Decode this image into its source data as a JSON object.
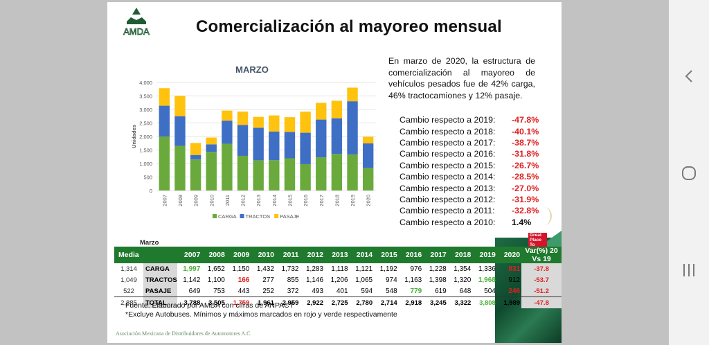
{
  "slide": {
    "title": "Comercialización al mayoreo mensual",
    "logo_text": "AMDA",
    "paragraph": "En marzo de 2020, la estructura de comercialización al mayoreo de vehículos pesados fue de 42% carga, 46% tractocamiones y 12% pasaje.",
    "changes": [
      {
        "label": "Cambio respecto a 2019:",
        "value": "-47.8%",
        "negative": true
      },
      {
        "label": "Cambio respecto a 2018:",
        "value": "-40.1%",
        "negative": true
      },
      {
        "label": "Cambio respecto a 2017:",
        "value": "-38.7%",
        "negative": true
      },
      {
        "label": "Cambio respecto a 2016:",
        "value": "-31.8%",
        "negative": true
      },
      {
        "label": "Cambio respecto a 2015:",
        "value": "-26.7%",
        "negative": true
      },
      {
        "label": "Cambio respecto a 2014:",
        "value": "-28.5%",
        "negative": true
      },
      {
        "label": "Cambio respecto a 2013:",
        "value": "-27.0%",
        "negative": true
      },
      {
        "label": "Cambio respecto a 2012:",
        "value": "-31.9%",
        "negative": true
      },
      {
        "label": "Cambio respecto a 2011:",
        "value": "-32.8%",
        "negative": true
      },
      {
        "label": "Cambio respecto a 2010:",
        "value": "1.4%",
        "negative": false
      }
    ],
    "badge": "Great Place To",
    "table": {
      "caption": "Marzo",
      "media_header": "Media",
      "years": [
        "2007",
        "2008",
        "2009",
        "2010",
        "2011",
        "2012",
        "2013",
        "2014",
        "2015",
        "2016",
        "2017",
        "2018",
        "2019",
        "2020"
      ],
      "var_header": "Var(%) 20 Vs 19",
      "rows": [
        {
          "media": "1,314",
          "label": "CARGA",
          "values": [
            "1,997",
            "1,652",
            "1,150",
            "1,432",
            "1,732",
            "1,283",
            "1,118",
            "1,121",
            "1,192",
            "976",
            "1,228",
            "1,354",
            "1,336",
            "831"
          ],
          "var": "-37.8",
          "min_idx": 13,
          "max_idx": 0
        },
        {
          "media": "1,049",
          "label": "TRACTOS",
          "values": [
            "1,142",
            "1,100",
            "166",
            "277",
            "855",
            "1,146",
            "1,206",
            "1,065",
            "974",
            "1,163",
            "1,398",
            "1,320",
            "1,968",
            "912"
          ],
          "var": "-53.7",
          "min_idx": 2,
          "max_idx": 12
        },
        {
          "media": "522",
          "label": "PASAJE",
          "values": [
            "649",
            "753",
            "443",
            "252",
            "372",
            "493",
            "401",
            "594",
            "548",
            "779",
            "619",
            "648",
            "504",
            "246"
          ],
          "var": "-51.2",
          "min_idx": 13,
          "max_idx": 9
        },
        {
          "media": "2,885",
          "label": "TOTAL",
          "values": [
            "3,788",
            "3,505",
            "1,759",
            "1,961",
            "2,959",
            "2,922",
            "2,725",
            "2,780",
            "2,714",
            "2,918",
            "3,245",
            "3,322",
            "3,808",
            "1,989"
          ],
          "var": "-47.8",
          "min_idx": 2,
          "max_idx": 12
        }
      ]
    },
    "footnote_source": "Fuente: Elaborado por AMDA con cifras de ANPACT",
    "footnote_note": "*Excluye Autobuses. Mínimos y máximos marcados en rojo y verde respectivamente",
    "footer": "Asociación Mexicana de Distribuidores de Automotores A.C."
  },
  "navbar": {
    "back": "back-icon",
    "home": "home-icon",
    "recents": "recents-icon"
  },
  "colors": {
    "carga": "#6aaa3c",
    "tractos": "#3f6fc4",
    "pasaje": "#ffc20e",
    "header_green": "#1f7a2e",
    "min_red": "#e02020",
    "max_green": "#4caf3a"
  },
  "chart_data": {
    "type": "bar",
    "stacked": true,
    "title": "MARZO",
    "xlabel": "",
    "ylabel": "Unidades",
    "ylim": [
      0,
      4000
    ],
    "yticks": [
      0,
      500,
      1000,
      1500,
      2000,
      2500,
      3000,
      3500,
      4000
    ],
    "ytick_labels": [
      "0",
      "500",
      "1,000",
      "1,500",
      "2,000",
      "2,500",
      "3,000",
      "3,500",
      "4,000"
    ],
    "grid": true,
    "legend": "bottom",
    "categories": [
      "2007",
      "2008",
      "2009",
      "2010",
      "2011",
      "2012",
      "2013",
      "2014",
      "2015",
      "2016",
      "2017",
      "2018",
      "2019",
      "2020"
    ],
    "series": [
      {
        "name": "CARGA",
        "color": "#6aaa3c",
        "values": [
          1997,
          1652,
          1150,
          1432,
          1732,
          1283,
          1118,
          1121,
          1192,
          976,
          1228,
          1354,
          1336,
          831
        ]
      },
      {
        "name": "TRACTOS",
        "color": "#3f6fc4",
        "values": [
          1142,
          1100,
          166,
          277,
          855,
          1146,
          1206,
          1065,
          974,
          1163,
          1398,
          1320,
          1968,
          912
        ]
      },
      {
        "name": "PASAJE",
        "color": "#ffc20e",
        "values": [
          649,
          753,
          443,
          252,
          372,
          493,
          401,
          594,
          548,
          779,
          619,
          648,
          504,
          246
        ]
      }
    ]
  }
}
